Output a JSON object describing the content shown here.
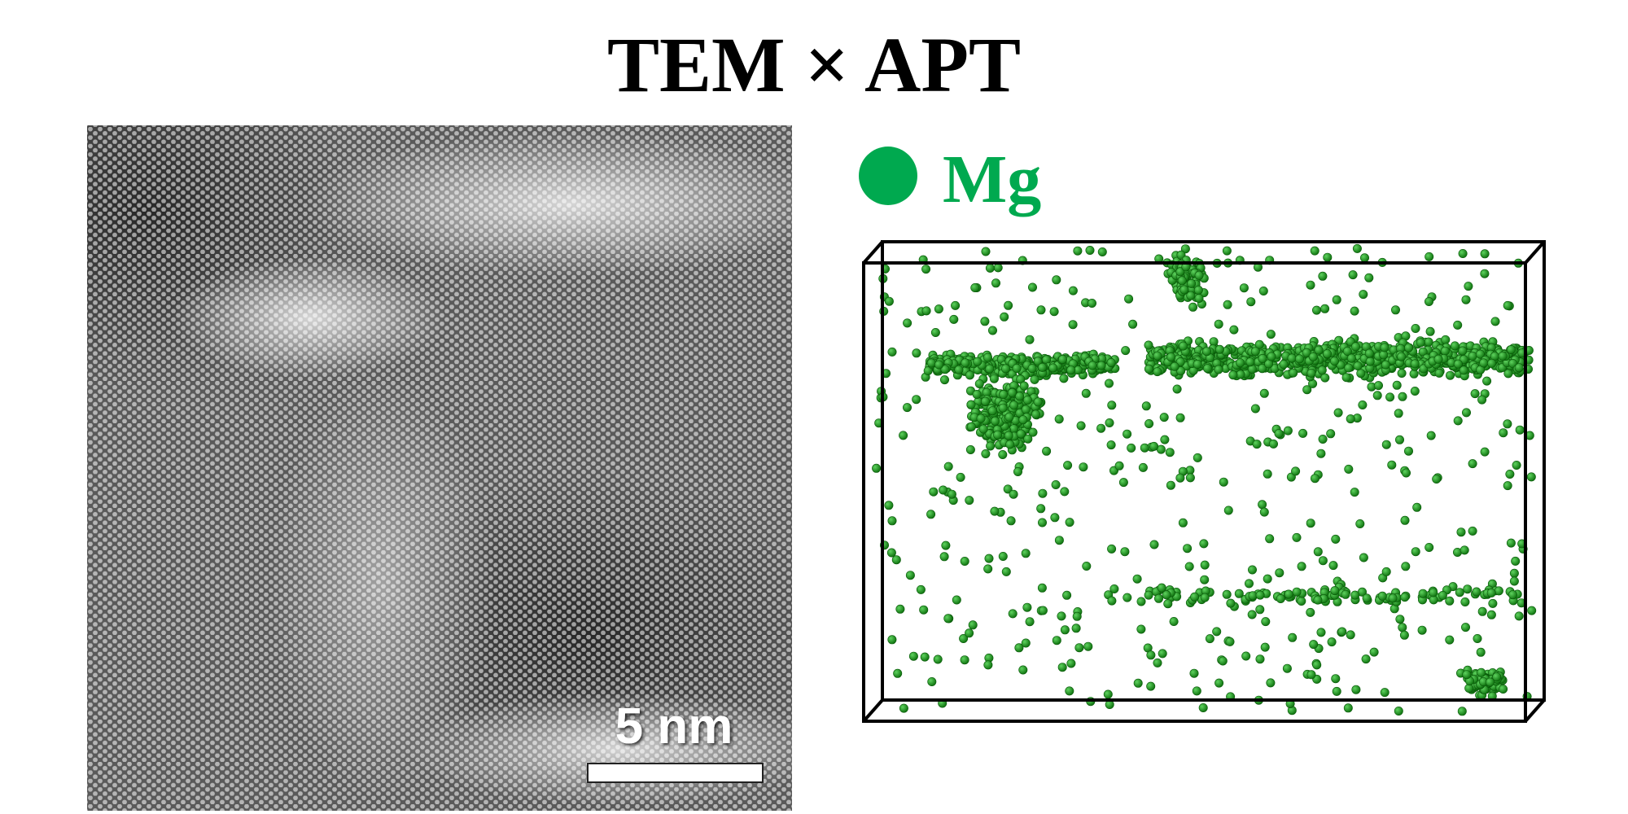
{
  "title": "TEM × APT",
  "tem_image": {
    "scale_bar": "5 nm"
  },
  "apt_map": {
    "legend": "Mg"
  }
}
